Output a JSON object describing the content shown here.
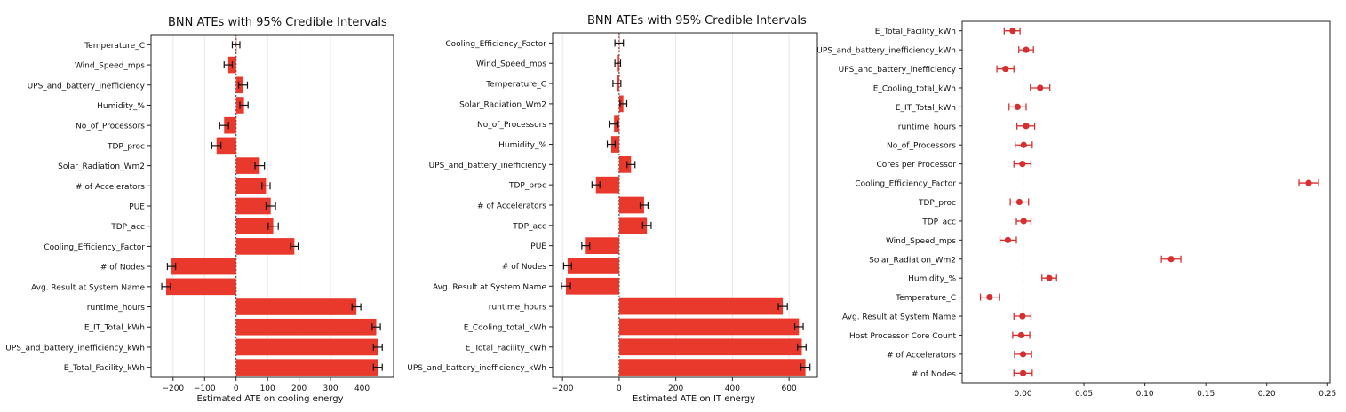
{
  "chart_data": [
    {
      "type": "bar",
      "title": "BNN ATEs with 95% Credible Intervals",
      "xlabel": "Estimated ATE on cooling energy",
      "ylabel": "",
      "orientation": "horizontal",
      "xlim": [
        -270,
        500
      ],
      "xticks": [
        -200,
        -100,
        0,
        100,
        200,
        300,
        400
      ],
      "grid": "x",
      "colors": {
        "bar": "#e8392c",
        "errorbar": "#111111",
        "zero_line": "#333333"
      },
      "categories": [
        "Temperature_C",
        "Wind_Speed_mps",
        "UPS_and_battery_inefficiency",
        "Humidity_%",
        "No_of_Processors",
        "TDP_proc",
        "Solar_Radiation_Wm2",
        "# of Accelerators",
        "PUE",
        "TDP_acc",
        "Cooling_Efficiency_Factor",
        "# of Nodes",
        "Avg. Result at System Name",
        "runtime_hours",
        "E_IT_Total_kWh",
        "UPS_and_battery_inefficiency_kWh",
        "E_Total_Facility_kWh"
      ],
      "values": [
        0,
        -25,
        22,
        25,
        -38,
        -62,
        75,
        95,
        110,
        118,
        185,
        -205,
        -222,
        382,
        445,
        450,
        450
      ],
      "ci_lower": [
        -12,
        -38,
        8,
        12,
        -52,
        -77,
        60,
        82,
        95,
        102,
        173,
        -218,
        -236,
        368,
        432,
        436,
        436
      ],
      "ci_upper": [
        12,
        -12,
        36,
        38,
        -24,
        -48,
        90,
        108,
        125,
        134,
        197,
        -192,
        -208,
        396,
        458,
        464,
        464
      ]
    },
    {
      "type": "bar",
      "title": "BNN ATEs with 95% Credible Intervals",
      "xlabel": "Estimated ATE on IT energy",
      "ylabel": "",
      "orientation": "horizontal",
      "xlim": [
        -235,
        700
      ],
      "xticks": [
        -200,
        0,
        200,
        400,
        600
      ],
      "grid": "x",
      "colors": {
        "bar": "#e8392c",
        "errorbar": "#111111",
        "zero_line": "#333333"
      },
      "categories": [
        "Cooling_Efficiency_Factor",
        "Wind_Speed_mps",
        "Temperature_C",
        "Solar_Radiation_Wm2",
        "No_of_Processors",
        "Humidity_%",
        "UPS_and_battery_inefficiency",
        "TDP_proc",
        "# of Accelerators",
        "TDP_acc",
        "PUE",
        "# of Nodes",
        "Avg. Result at System Name",
        "runtime_hours",
        "E_Cooling_total_kWh",
        "E_Total_Facility_kWh",
        "UPS_and_battery_inefficiency_kWh"
      ],
      "values": [
        0,
        -5,
        -8,
        15,
        -18,
        -28,
        42,
        -82,
        88,
        98,
        -118,
        -182,
        -188,
        578,
        635,
        645,
        658
      ],
      "ci_lower": [
        -15,
        -15,
        -22,
        3,
        -33,
        -42,
        28,
        -96,
        74,
        83,
        -132,
        -196,
        -204,
        562,
        620,
        630,
        642
      ],
      "ci_upper": [
        15,
        5,
        6,
        27,
        -4,
        -14,
        56,
        -68,
        102,
        113,
        -104,
        -168,
        -172,
        594,
        650,
        660,
        674
      ]
    },
    {
      "type": "scatter",
      "title": "",
      "xlabel": "",
      "ylabel": "",
      "xlim": [
        -0.05,
        0.252
      ],
      "xticks": [
        0.0,
        0.05,
        0.1,
        0.15,
        0.2,
        0.25
      ],
      "xtick_labels": [
        "0.00",
        "0.05",
        "0.10",
        "0.15",
        "0.20",
        "0.25"
      ],
      "grid": "none",
      "colors": {
        "point": "#d62f2f",
        "errorbar": "#d62f2f",
        "zero_line": "#6b7a90"
      },
      "categories": [
        "E_Total_Facility_kWh",
        "UPS_and_battery_inefficiency_kWh",
        "UPS_and_battery_inefficiency",
        "E_Cooling_total_kWh",
        "E_IT_Total_kWh",
        "runtime_hours",
        "No_of_Processors",
        "Cores per Processor",
        "Cooling_Efficiency_Factor",
        "TDP_proc",
        "TDP_acc",
        "Wind_Speed_mps",
        "Solar_Radiation_Wm2",
        "Humidity_%",
        "Temperature_C",
        "Avg. Result at System Name",
        "Host Processor Core Count",
        "# of Accelerators",
        "# of Nodes"
      ],
      "values": [
        -0.0085,
        0.0025,
        -0.0145,
        0.014,
        -0.0045,
        0.0025,
        0.0005,
        -0.0005,
        0.2345,
        -0.003,
        0.0005,
        -0.0125,
        0.1215,
        0.0215,
        -0.0275,
        -0.0005,
        -0.0015,
        0.0,
        0.0
      ],
      "ci_lower": [
        -0.0155,
        -0.0035,
        -0.0215,
        0.006,
        -0.0115,
        -0.005,
        -0.0065,
        -0.0075,
        0.2265,
        -0.0105,
        -0.0055,
        -0.019,
        0.1135,
        0.0155,
        -0.035,
        -0.0075,
        -0.0085,
        -0.007,
        -0.0075
      ],
      "ci_upper": [
        -0.0025,
        0.0085,
        -0.0075,
        0.022,
        0.0025,
        0.0095,
        0.0075,
        0.0065,
        0.2425,
        0.0045,
        0.0065,
        -0.0055,
        0.1295,
        0.0275,
        -0.0195,
        0.0065,
        0.0055,
        0.007,
        0.0075
      ]
    }
  ]
}
